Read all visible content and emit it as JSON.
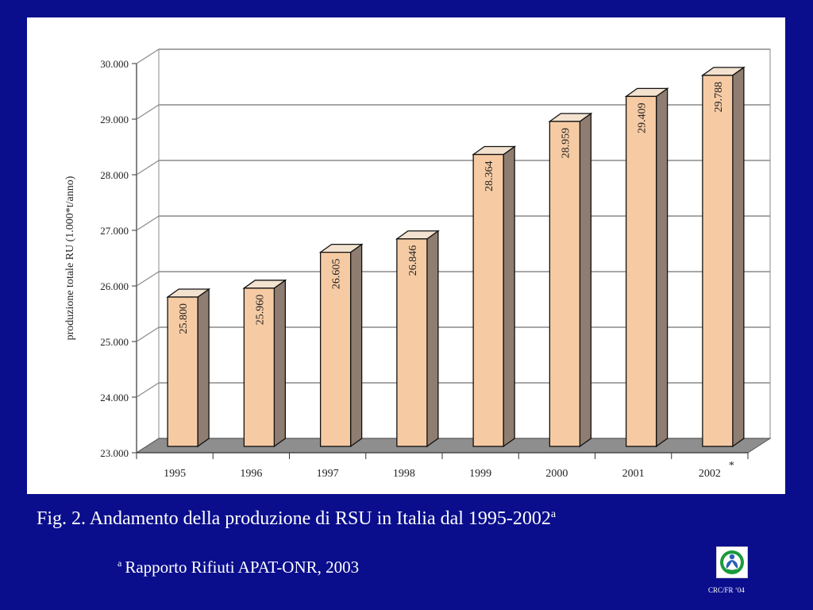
{
  "chart_data": {
    "type": "bar",
    "categories": [
      "1995",
      "1996",
      "1997",
      "1998",
      "1999",
      "2000",
      "2001",
      "2002"
    ],
    "values": [
      25800,
      25960,
      26605,
      26846,
      28364,
      28959,
      29409,
      29788
    ],
    "value_labels": [
      "25.800",
      "25.960",
      "26.605",
      "26.846",
      "28.364",
      "28.959",
      "29.409",
      "29.788"
    ],
    "ylabel": "produzione totale RU (1.000*t/anno)",
    "ylim": [
      23000,
      30000
    ],
    "yticks": [
      23000,
      24000,
      25000,
      26000,
      27000,
      28000,
      29000,
      30000
    ],
    "ytick_labels": [
      "23.000",
      "24.000",
      "25.000",
      "26.000",
      "27.000",
      "28.000",
      "29.000",
      "30.000"
    ],
    "x_note": "*",
    "x_note_category": "2002",
    "grid": true,
    "three_d": true,
    "colors": {
      "bar_front": "#f6cba4",
      "bar_side": "#8e7d70",
      "bar_top": "#f3e2cf",
      "floor": "#8e8e8e",
      "grid": "#8a8a8a"
    }
  },
  "caption": {
    "prefix": "Fig. 2.  Andamento della produzione di RSU in Italia dal 1995-2002",
    "marker": "a"
  },
  "source": {
    "marker": "a",
    "text": "Rapporto Rifiuti APAT-ONR, 2003"
  },
  "footer": {
    "code": "CRC/FR ‘04"
  },
  "colors": {
    "background": "#0a0e8c",
    "text": "#ffffff"
  }
}
